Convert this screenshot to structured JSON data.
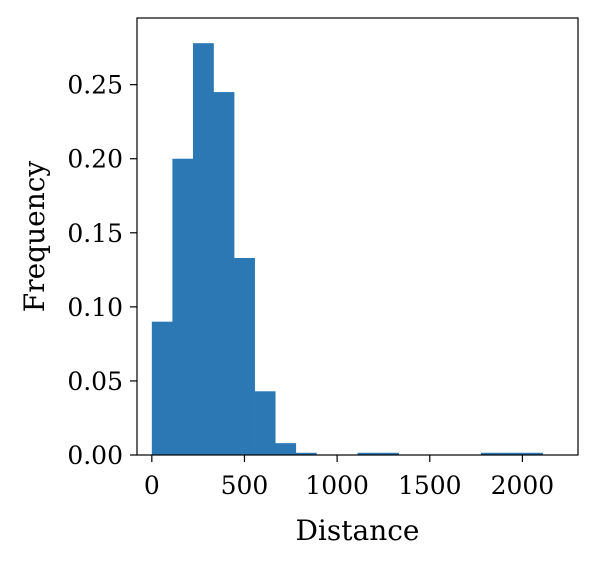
{
  "chart_data": {
    "type": "bar",
    "title": "",
    "xlabel": "Distance",
    "ylabel": "Frequency",
    "xlim": [
      -80,
      2300
    ],
    "ylim": [
      0,
      0.295
    ],
    "color": "#2b78b4",
    "xticks": [
      0,
      500,
      1000,
      1500,
      2000
    ],
    "xtick_labels": [
      "0",
      "500",
      "1000",
      "1500",
      "2000"
    ],
    "yticks": [
      0.0,
      0.05,
      0.1,
      0.15,
      0.2,
      0.25
    ],
    "ytick_labels": [
      "0.00",
      "0.05",
      "0.10",
      "0.15",
      "0.20",
      "0.25"
    ],
    "bin_edges": [
      0,
      111,
      222,
      333,
      444,
      555,
      666,
      777,
      888,
      999,
      1110,
      1221,
      1332,
      1443,
      1554,
      1665,
      1776,
      1887,
      1998,
      2109
    ],
    "values": [
      0.09,
      0.2,
      0.278,
      0.245,
      0.133,
      0.043,
      0.008,
      0.0015,
      0.0,
      0.0,
      0.0015,
      0.0015,
      0.0,
      0.0,
      0.0,
      0.0,
      0.0015,
      0.0015,
      0.0015
    ]
  }
}
